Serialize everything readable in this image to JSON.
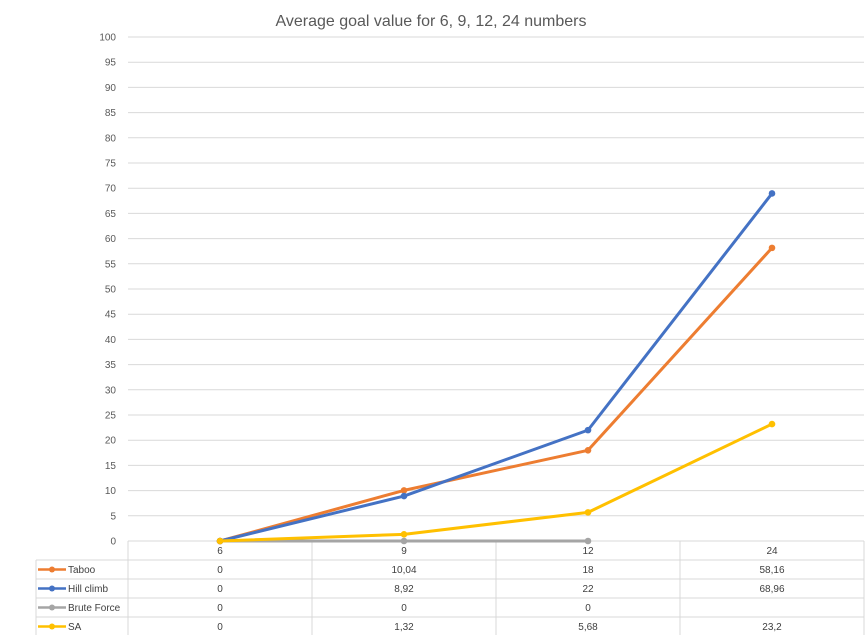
{
  "chart_data": {
    "type": "line",
    "title": "Average goal value for 6, 9, 12, 24 numbers",
    "categories": [
      "6",
      "9",
      "12",
      "24"
    ],
    "ylim": [
      0,
      100
    ],
    "y_ticks": [
      0,
      5,
      10,
      15,
      20,
      25,
      30,
      35,
      40,
      45,
      50,
      55,
      60,
      65,
      70,
      75,
      80,
      85,
      90,
      95,
      100
    ],
    "grid": true,
    "legend": "data-table-below",
    "series": [
      {
        "name": "Taboo",
        "color": "#ED7D31",
        "values": [
          0,
          10.04,
          18,
          58.16
        ],
        "labels": [
          "0",
          "10,04",
          "18",
          "58,16"
        ]
      },
      {
        "name": "Hill climb",
        "color": "#4472C4",
        "values": [
          0,
          8.92,
          22,
          68.96
        ],
        "labels": [
          "0",
          "8,92",
          "22",
          "68,96"
        ]
      },
      {
        "name": "Brute Force",
        "color": "#A5A5A5",
        "values": [
          0,
          0,
          0,
          null
        ],
        "labels": [
          "0",
          "0",
          "0",
          ""
        ]
      },
      {
        "name": "SA",
        "color": "#FFC000",
        "values": [
          0,
          1.32,
          5.68,
          23.2
        ],
        "labels": [
          "0",
          "1,32",
          "5,68",
          "23,2"
        ]
      }
    ]
  }
}
